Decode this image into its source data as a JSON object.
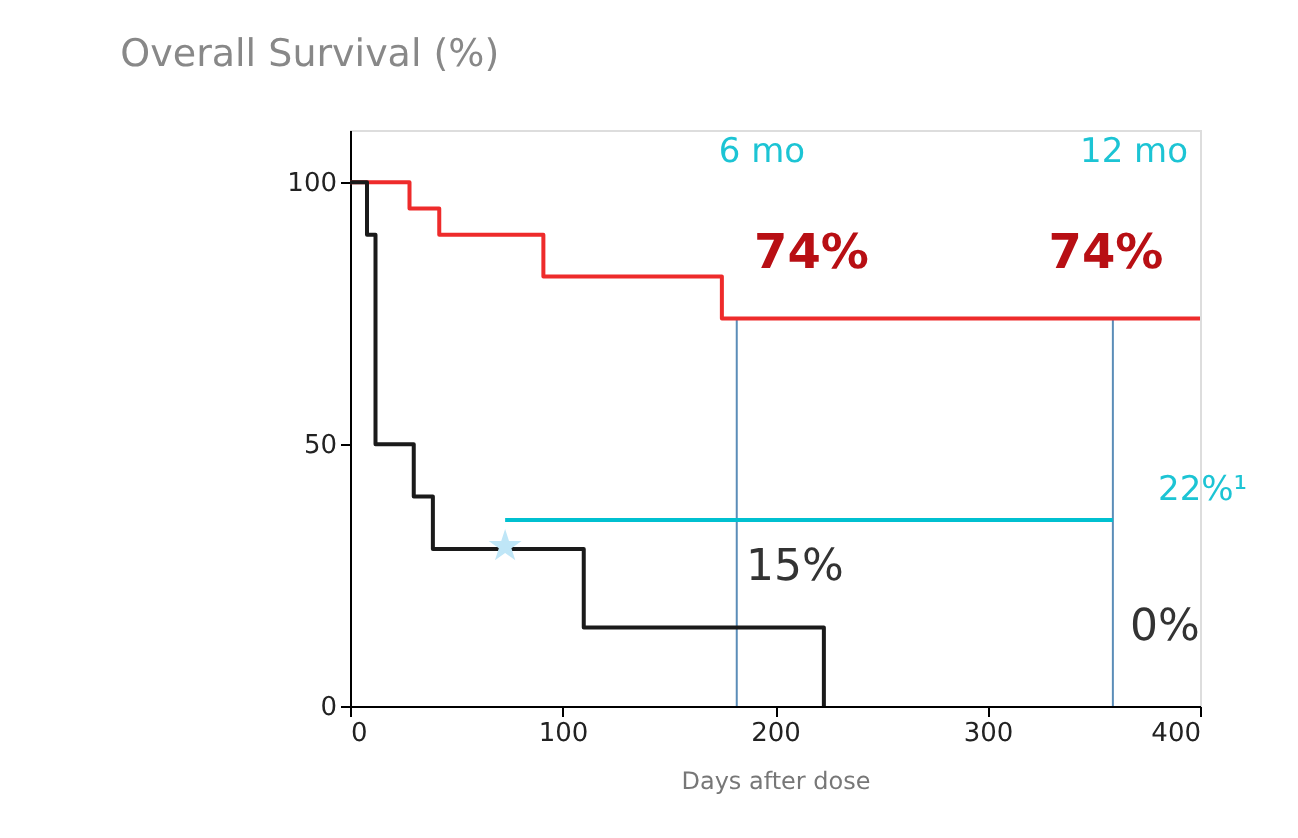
{
  "chart_data": {
    "type": "step",
    "title": "Overall  Survival (%)",
    "xlabel": "Days after dose",
    "xlim": [
      0,
      400
    ],
    "xticks": [
      0,
      100,
      200,
      300,
      400
    ],
    "ylim": [
      0,
      110
    ],
    "yticks": [
      0,
      50,
      100
    ],
    "grid": false,
    "series": [
      {
        "color": "#ee2b2b",
        "x": [
          0,
          28,
          42,
          91,
          175,
          400
        ],
        "values": [
          100,
          95,
          90,
          82,
          74,
          74
        ]
      },
      {
        "color": "#1a1a1a",
        "x": [
          0,
          8,
          12,
          30,
          39,
          110,
          223
        ],
        "values": [
          100,
          90,
          50,
          40,
          30,
          15,
          0
        ]
      },
      {
        "type": "line",
        "color": "#00c0d0",
        "x": [
          73,
          359
        ],
        "values": [
          35.5,
          35.5
        ]
      },
      {
        "type": "scatter",
        "marker": "star",
        "color": "#bfe6f7",
        "x": [
          73
        ],
        "values": [
          30.5
        ]
      }
    ],
    "ref_lines": [
      {
        "axis": "x",
        "value": 182,
        "color": "#5b8db8"
      },
      {
        "axis": "x",
        "value": 359,
        "color": "#5b8db8"
      }
    ],
    "annotations": [
      "6 mo",
      "12 mo",
      "74%",
      "74%",
      "15%",
      "0%",
      "22%¹"
    ]
  }
}
